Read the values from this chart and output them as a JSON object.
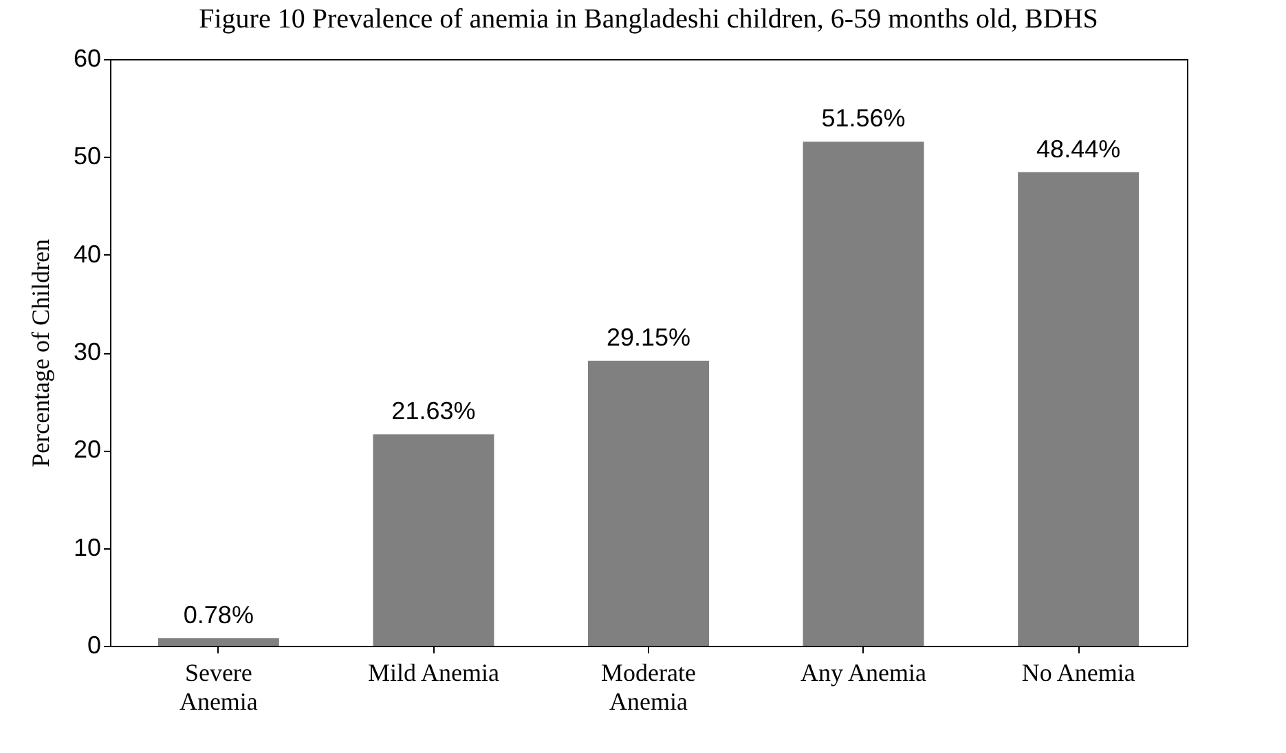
{
  "chart_data": {
    "type": "bar",
    "title": "Figure 10 Prevalence of anemia in Bangladeshi children, 6-59 months old, BDHS",
    "ylabel": "Percentage of Children",
    "categories": [
      "Severe Anemia",
      "Mild Anemia",
      "Moderate Anemia",
      "Any Anemia",
      "No Anemia"
    ],
    "values": [
      0.78,
      21.63,
      29.15,
      51.56,
      48.44
    ],
    "value_labels": [
      "0.78%",
      "21.63%",
      "29.15%",
      "51.56%",
      "48.44%"
    ],
    "color": "#808080",
    "ylim": [
      0,
      60
    ],
    "yticks": [
      0,
      10,
      20,
      30,
      40,
      50,
      60
    ],
    "grid": false
  }
}
